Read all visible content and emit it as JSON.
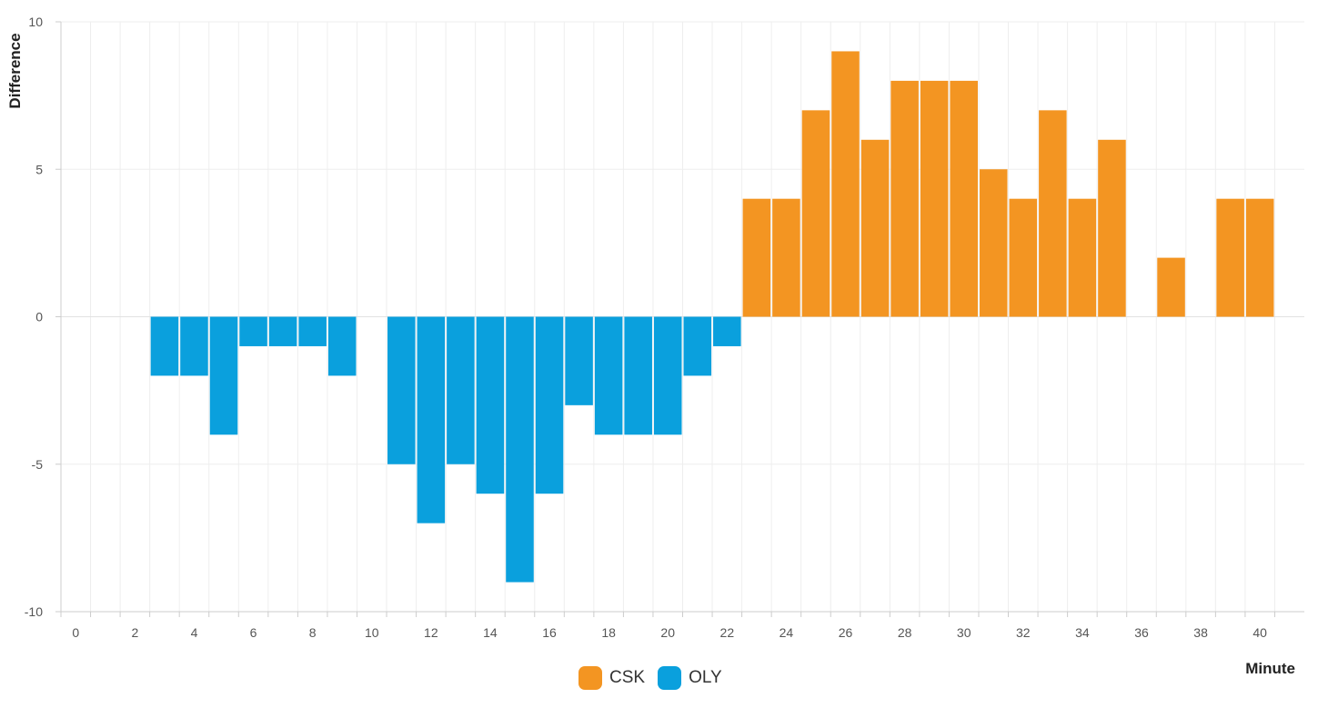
{
  "chart_data": {
    "type": "bar",
    "xlabel": "Minute",
    "ylabel": "Difference",
    "xlim": [
      -0.5,
      41.5
    ],
    "ylim": [
      -10,
      10
    ],
    "xticks": [
      0,
      2,
      4,
      6,
      8,
      10,
      12,
      14,
      16,
      18,
      20,
      22,
      24,
      26,
      28,
      30,
      32,
      34,
      36,
      38,
      40
    ],
    "yticks": [
      -10,
      -5,
      0,
      5,
      10
    ],
    "grid": true,
    "legend_position": "bottom-center",
    "x": [
      0,
      1,
      2,
      3,
      4,
      5,
      6,
      7,
      8,
      9,
      10,
      11,
      12,
      13,
      14,
      15,
      16,
      17,
      18,
      19,
      20,
      21,
      22,
      23,
      24,
      25,
      26,
      27,
      28,
      29,
      30,
      31,
      32,
      33,
      34,
      35,
      36,
      37,
      38,
      39,
      40
    ],
    "values": [
      0,
      0,
      0,
      -2,
      -2,
      -4,
      -1,
      -1,
      -1,
      -2,
      0,
      -5,
      -7,
      -5,
      -6,
      -9,
      -6,
      -3,
      -4,
      -4,
      -4,
      -2,
      -1,
      4,
      4,
      7,
      9,
      6,
      8,
      8,
      8,
      5,
      4,
      7,
      4,
      6,
      0,
      2,
      0,
      4,
      4
    ],
    "series": [
      {
        "name": "CSK",
        "color": "#f39522",
        "sign": "positive"
      },
      {
        "name": "OLY",
        "color": "#0aa0dd",
        "sign": "negative"
      }
    ]
  }
}
